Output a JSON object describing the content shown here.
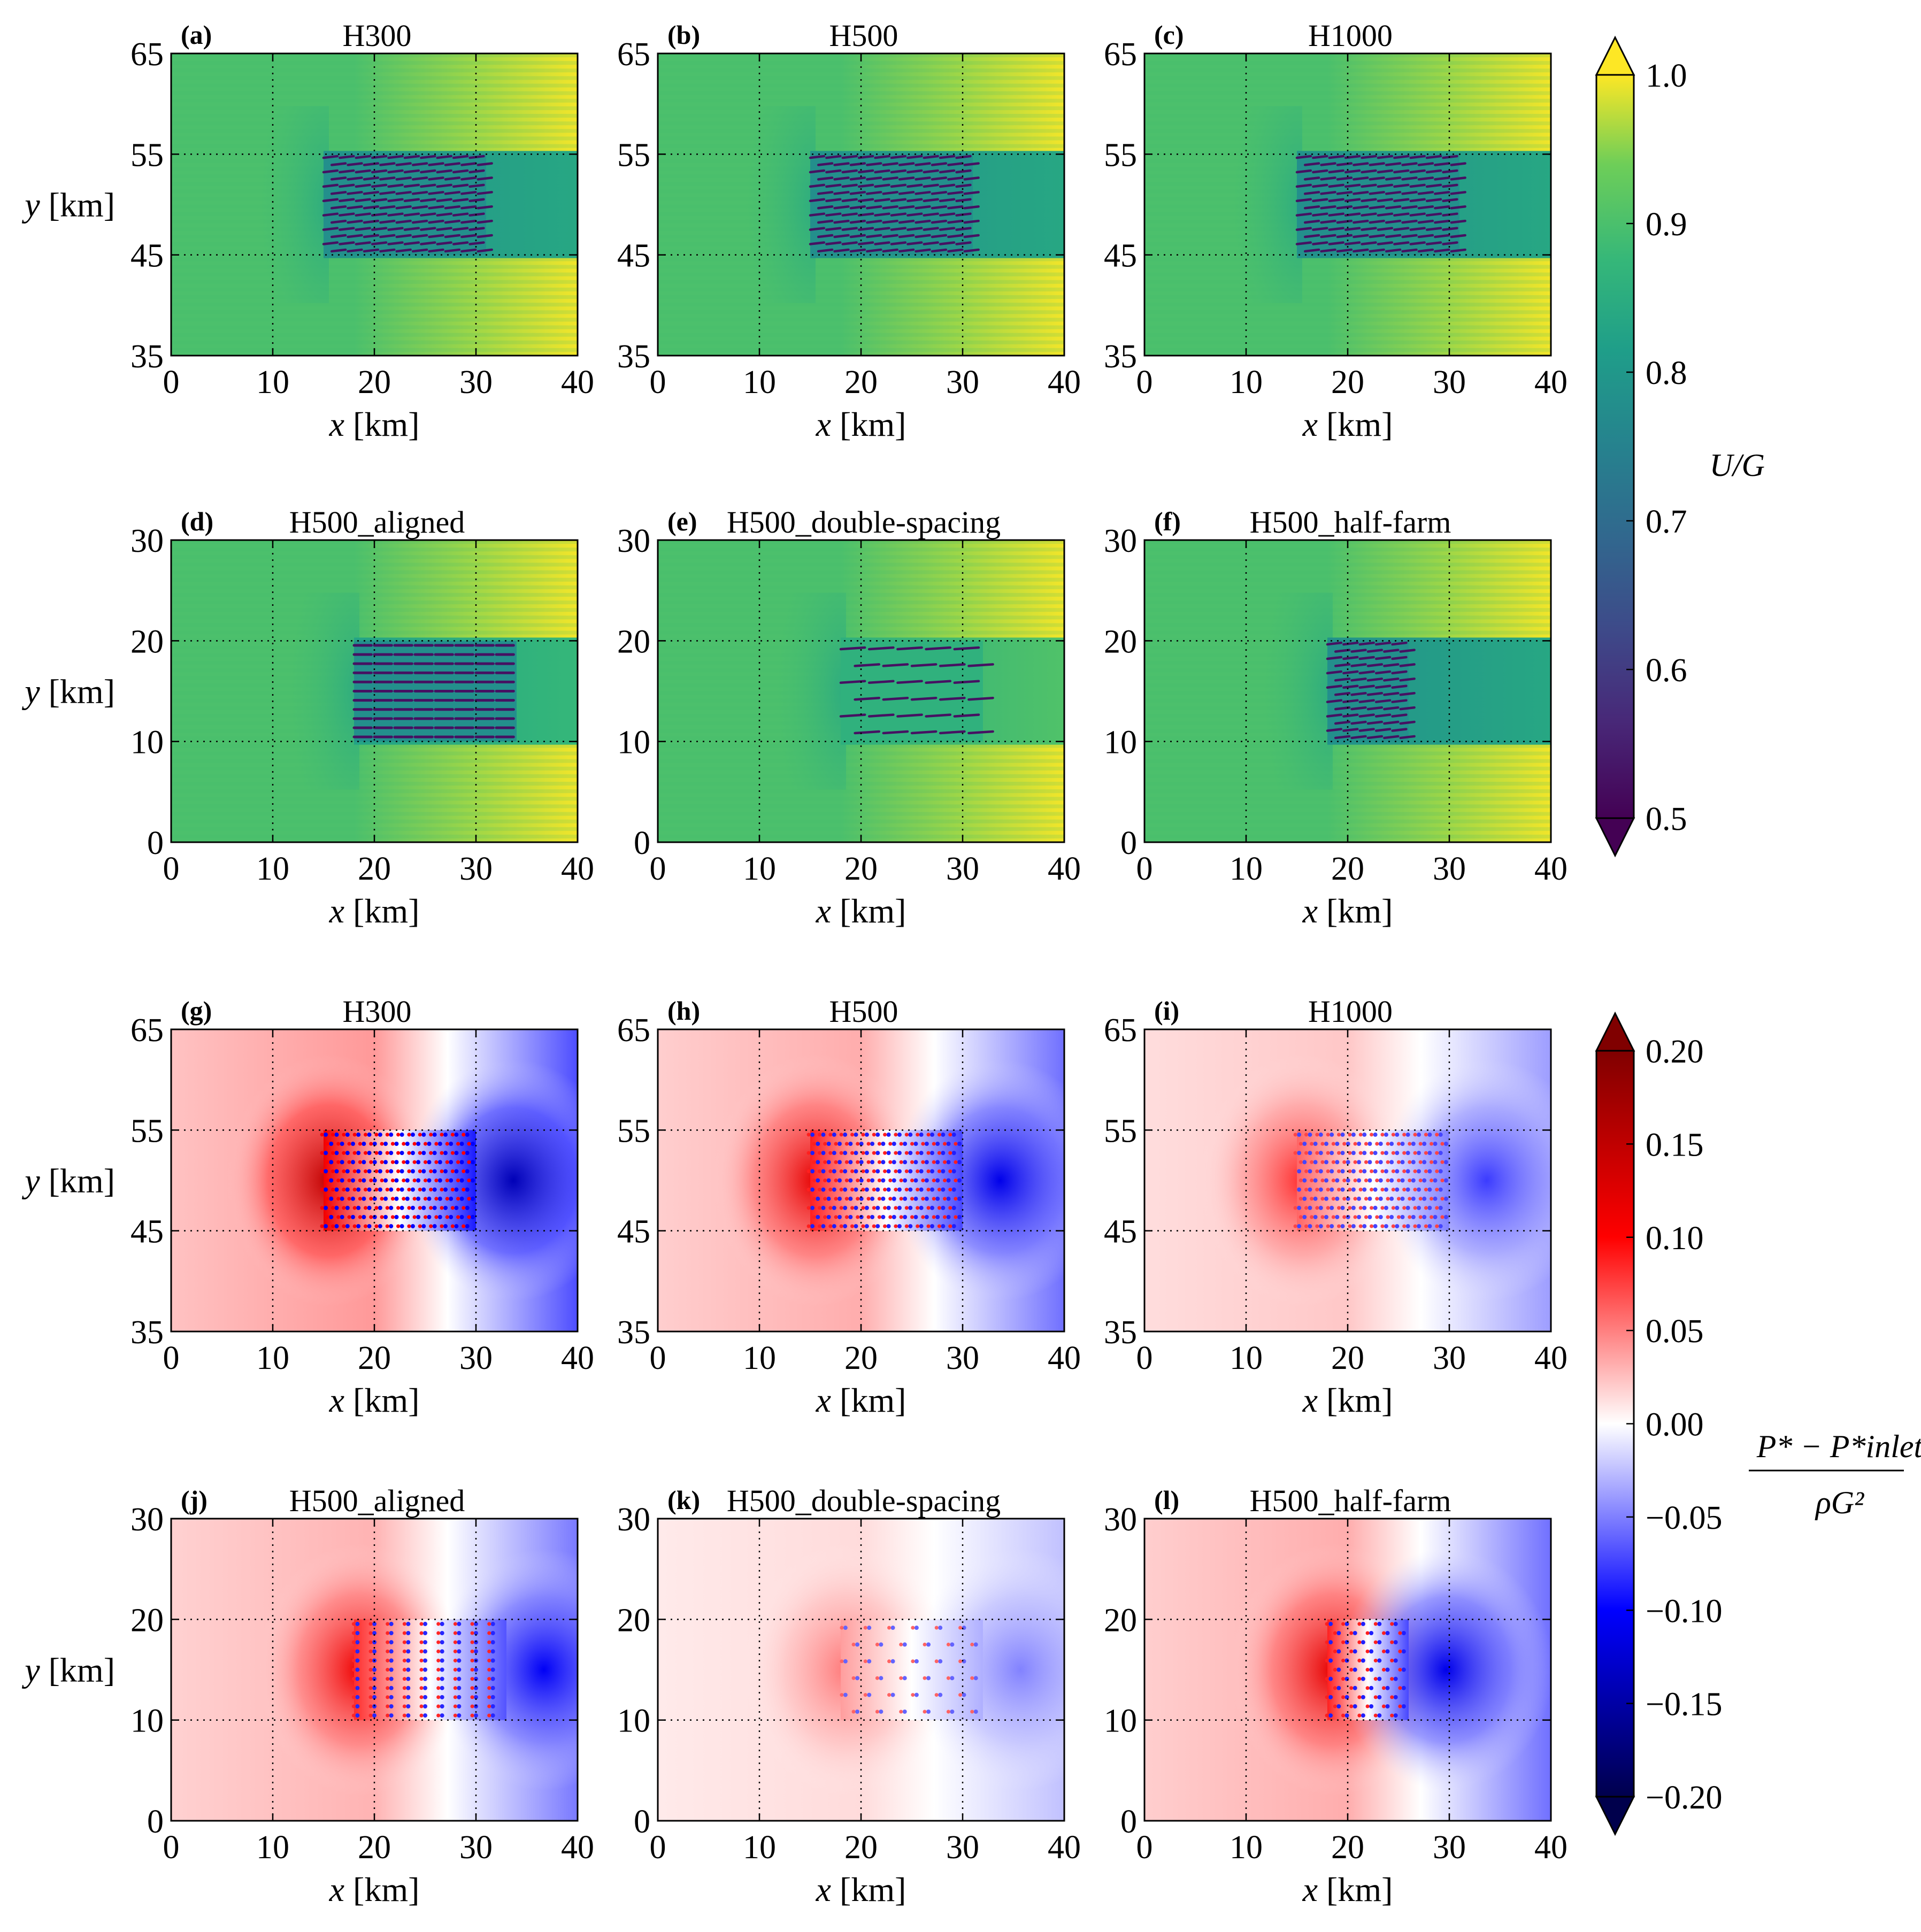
{
  "chart_data": [
    {
      "type": "heatmap",
      "quantity": "U/G",
      "panels": [
        {
          "label": "(a)",
          "title": "H300",
          "xlim": [
            0,
            40
          ],
          "ylim": [
            35,
            65
          ],
          "xticks": [
            0,
            10,
            20,
            30,
            40
          ],
          "yticks": [
            35,
            45,
            55,
            65
          ],
          "xlabel": "x [km]",
          "ylabel": "y [km]",
          "farm_x": [
            15,
            31
          ],
          "farm_y": [
            45,
            55
          ],
          "layout": "staggered"
        },
        {
          "label": "(b)",
          "title": "H500",
          "xlim": [
            0,
            40
          ],
          "ylim": [
            35,
            65
          ],
          "xticks": [
            0,
            10,
            20,
            30,
            40
          ],
          "yticks": [
            35,
            45,
            55,
            65
          ],
          "xlabel": "x [km]",
          "ylabel": "",
          "farm_x": [
            15,
            31
          ],
          "farm_y": [
            45,
            55
          ],
          "layout": "staggered"
        },
        {
          "label": "(c)",
          "title": "H1000",
          "xlim": [
            0,
            40
          ],
          "ylim": [
            35,
            65
          ],
          "xticks": [
            0,
            10,
            20,
            30,
            40
          ],
          "yticks": [
            35,
            45,
            55,
            65
          ],
          "xlabel": "x [km]",
          "ylabel": "",
          "farm_x": [
            15,
            31
          ],
          "farm_y": [
            45,
            55
          ],
          "layout": "staggered"
        },
        {
          "label": "(d)",
          "title": "H500_aligned",
          "xlim": [
            0,
            40
          ],
          "ylim": [
            0,
            30
          ],
          "xticks": [
            0,
            10,
            20,
            30,
            40
          ],
          "yticks": [
            0,
            10,
            20,
            30
          ],
          "xlabel": "x [km]",
          "ylabel": "y [km]",
          "farm_x": [
            18,
            34
          ],
          "farm_y": [
            10,
            20
          ],
          "layout": "aligned"
        },
        {
          "label": "(e)",
          "title": "H500_double-spacing",
          "xlim": [
            0,
            40
          ],
          "ylim": [
            0,
            30
          ],
          "xticks": [
            0,
            10,
            20,
            30,
            40
          ],
          "yticks": [
            0,
            10,
            20,
            30
          ],
          "xlabel": "x [km]",
          "ylabel": "",
          "farm_x": [
            18,
            32
          ],
          "farm_y": [
            10,
            20
          ],
          "layout": "double"
        },
        {
          "label": "(f)",
          "title": "H500_half-farm",
          "xlim": [
            0,
            40
          ],
          "ylim": [
            0,
            30
          ],
          "xticks": [
            0,
            10,
            20,
            30,
            40
          ],
          "yticks": [
            0,
            10,
            20,
            30
          ],
          "xlabel": "x [km]",
          "ylabel": "",
          "farm_x": [
            18,
            26
          ],
          "farm_y": [
            10,
            20
          ],
          "layout": "staggered"
        }
      ],
      "colorbar": {
        "label": "U/G",
        "min": 0.5,
        "max": 1.0,
        "ticks": [
          "0.5",
          "0.6",
          "0.7",
          "0.8",
          "0.9",
          "1.0"
        ],
        "colormap": "viridis",
        "extend": "both"
      }
    },
    {
      "type": "heatmap",
      "quantity": "(P* − P*_inlet) / ρG²",
      "panels": [
        {
          "label": "(g)",
          "title": "H300",
          "xlim": [
            0,
            40
          ],
          "ylim": [
            35,
            65
          ],
          "xticks": [
            0,
            10,
            20,
            30,
            40
          ],
          "yticks": [
            35,
            45,
            55,
            65
          ],
          "xlabel": "x [km]",
          "ylabel": "y [km]",
          "farm_x": [
            15,
            30
          ],
          "farm_y": [
            45,
            55
          ],
          "strength": 1.0
        },
        {
          "label": "(h)",
          "title": "H500",
          "xlim": [
            0,
            40
          ],
          "ylim": [
            35,
            65
          ],
          "xticks": [
            0,
            10,
            20,
            30,
            40
          ],
          "yticks": [
            35,
            45,
            55,
            65
          ],
          "xlabel": "x [km]",
          "ylabel": "",
          "farm_x": [
            15,
            30
          ],
          "farm_y": [
            45,
            55
          ],
          "strength": 0.8
        },
        {
          "label": "(i)",
          "title": "H1000",
          "xlim": [
            0,
            40
          ],
          "ylim": [
            35,
            65
          ],
          "xticks": [
            0,
            10,
            20,
            30,
            40
          ],
          "yticks": [
            35,
            45,
            55,
            65
          ],
          "xlabel": "x [km]",
          "ylabel": "",
          "farm_x": [
            15,
            30
          ],
          "farm_y": [
            45,
            55
          ],
          "strength": 0.55
        },
        {
          "label": "(j)",
          "title": "H500_aligned",
          "xlim": [
            0,
            40
          ],
          "ylim": [
            0,
            30
          ],
          "xticks": [
            0,
            10,
            20,
            30,
            40
          ],
          "yticks": [
            0,
            10,
            20,
            30
          ],
          "xlabel": "x [km]",
          "ylabel": "y [km]",
          "farm_x": [
            18,
            33
          ],
          "farm_y": [
            10,
            20
          ],
          "strength": 0.75
        },
        {
          "label": "(k)",
          "title": "H500_double-spacing",
          "xlim": [
            0,
            40
          ],
          "ylim": [
            0,
            30
          ],
          "xticks": [
            0,
            10,
            20,
            30,
            40
          ],
          "yticks": [
            0,
            10,
            20,
            30
          ],
          "xlabel": "x [km]",
          "ylabel": "",
          "farm_x": [
            18,
            32
          ],
          "farm_y": [
            10,
            20
          ],
          "strength": 0.35
        },
        {
          "label": "(l)",
          "title": "H500_half-farm",
          "xlim": [
            0,
            40
          ],
          "ylim": [
            0,
            30
          ],
          "xticks": [
            0,
            10,
            20,
            30,
            40
          ],
          "yticks": [
            0,
            10,
            20,
            30
          ],
          "xlabel": "x [km]",
          "ylabel": "",
          "farm_x": [
            18,
            26
          ],
          "farm_y": [
            10,
            20
          ],
          "strength": 0.8
        }
      ],
      "colorbar": {
        "label_numerator": "P* − P*inlet",
        "label_denominator": "ρG²",
        "min": -0.2,
        "max": 0.2,
        "ticks": [
          "−0.20",
          "−0.15",
          "−0.10",
          "−0.05",
          "0.00",
          "0.05",
          "0.10",
          "0.15",
          "0.20"
        ],
        "colormap": "seismic",
        "extend": "both"
      }
    }
  ]
}
